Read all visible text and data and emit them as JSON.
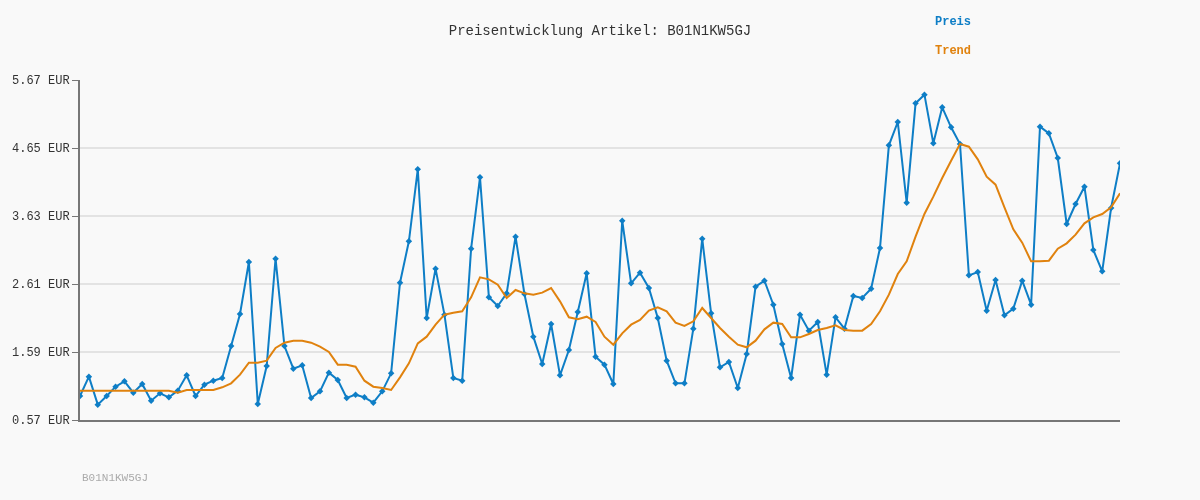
{
  "chart_data": {
    "type": "line",
    "title": "Preisentwicklung Artikel: B01N1KW5GJ",
    "annotations": [
      "B01N1KW5GJ"
    ],
    "categories": [
      null,
      null,
      null,
      null,
      null,
      null,
      null,
      null,
      null,
      null,
      null,
      null,
      null,
      null,
      null,
      null,
      null,
      null,
      null,
      null,
      null,
      null,
      null,
      null,
      null,
      null,
      null,
      null,
      null,
      null,
      null,
      null,
      null,
      null,
      null,
      null,
      null,
      null,
      null,
      null,
      null,
      null,
      null,
      null,
      null,
      null,
      null,
      null,
      null,
      null,
      null,
      null,
      null,
      null,
      null,
      null,
      null,
      null,
      null,
      null,
      null,
      null,
      null,
      null,
      null,
      null,
      null,
      null,
      null,
      null,
      null,
      null,
      null,
      null,
      null,
      null,
      null,
      null,
      null,
      null,
      null,
      null,
      null,
      null,
      null,
      null,
      null,
      null,
      null,
      null,
      null,
      null,
      null,
      null,
      null,
      null,
      null,
      null,
      null,
      null,
      null,
      null,
      null,
      null,
      null,
      null,
      null,
      null,
      null,
      null,
      null,
      null,
      null,
      null,
      null,
      null,
      null,
      null
    ],
    "series": [
      {
        "name": "Preis",
        "color": "#0e7ec6",
        "marker": "diamond",
        "values": [
          0.93,
          1.22,
          0.8,
          0.93,
          1.07,
          1.15,
          0.98,
          1.11,
          0.86,
          0.97,
          0.91,
          1.01,
          1.24,
          0.93,
          1.1,
          1.16,
          1.2,
          1.68,
          2.16,
          2.94,
          0.81,
          1.38,
          2.99,
          1.68,
          1.34,
          1.39,
          0.9,
          1.0,
          1.28,
          1.17,
          0.9,
          0.95,
          0.91,
          0.83,
          1.0,
          1.27,
          2.63,
          3.25,
          4.33,
          2.1,
          2.84,
          2.15,
          1.2,
          1.16,
          3.14,
          4.21,
          2.41,
          2.28,
          2.47,
          3.32,
          2.46,
          1.82,
          1.41,
          2.01,
          1.24,
          1.62,
          2.19,
          2.77,
          1.52,
          1.4,
          1.11,
          3.56,
          2.62,
          2.78,
          2.55,
          2.1,
          1.46,
          1.12,
          1.12,
          1.94,
          3.29,
          2.17,
          1.36,
          1.44,
          1.05,
          1.56,
          2.57,
          2.66,
          2.3,
          1.71,
          1.2,
          2.15,
          1.91,
          2.04,
          1.25,
          2.11,
          1.94,
          2.43,
          2.4,
          2.54,
          3.15,
          4.69,
          5.04,
          3.83,
          5.32,
          5.45,
          4.72,
          5.26,
          4.96,
          4.71,
          2.74,
          2.79,
          2.21,
          2.67,
          2.14,
          2.24,
          2.66,
          2.3,
          4.97,
          4.87,
          4.5,
          3.51,
          3.81,
          4.07,
          3.12,
          2.8,
          3.75,
          4.42
        ]
      },
      {
        "name": "Trend",
        "color": "#e0820e",
        "marker": "none",
        "values": [
          1.01,
          1.01,
          1.01,
          1.01,
          1.01,
          1.01,
          1.01,
          1.01,
          1.01,
          1.01,
          1.01,
          0.98,
          1.02,
          1.02,
          1.02,
          1.02,
          1.06,
          1.12,
          1.25,
          1.43,
          1.43,
          1.46,
          1.65,
          1.73,
          1.76,
          1.76,
          1.73,
          1.67,
          1.59,
          1.4,
          1.4,
          1.37,
          1.16,
          1.07,
          1.05,
          1.02,
          1.21,
          1.42,
          1.72,
          1.82,
          2.0,
          2.15,
          2.18,
          2.2,
          2.41,
          2.71,
          2.68,
          2.6,
          2.4,
          2.52,
          2.47,
          2.45,
          2.48,
          2.55,
          2.35,
          2.11,
          2.08,
          2.12,
          2.04,
          1.82,
          1.7,
          1.87,
          2.0,
          2.07,
          2.21,
          2.26,
          2.2,
          2.03,
          1.98,
          2.05,
          2.25,
          2.1,
          1.95,
          1.82,
          1.7,
          1.66,
          1.76,
          1.93,
          2.03,
          2.01,
          1.81,
          1.81,
          1.86,
          1.92,
          1.95,
          1.99,
          1.92,
          1.91,
          1.91,
          2.01,
          2.2,
          2.45,
          2.76,
          2.95,
          3.32,
          3.66,
          3.92,
          4.2,
          4.46,
          4.71,
          4.67,
          4.48,
          4.22,
          4.1,
          3.76,
          3.43,
          3.23,
          2.95,
          2.95,
          2.96,
          3.14,
          3.22,
          3.35,
          3.52,
          3.61,
          3.66,
          3.76,
          3.97
        ]
      }
    ],
    "ylim": [
      0.57,
      5.67
    ],
    "yticks": [
      {
        "value": 0.57,
        "label": "0.57 EUR"
      },
      {
        "value": 1.59,
        "label": "1.59 EUR"
      },
      {
        "value": 2.61,
        "label": "2.61 EUR"
      },
      {
        "value": 3.63,
        "label": "3.63 EUR"
      },
      {
        "value": 4.65,
        "label": "4.65 EUR"
      },
      {
        "value": 5.67,
        "label": "5.67 EUR"
      }
    ],
    "grid": "y",
    "legend": "top right",
    "line_style": "solid"
  }
}
